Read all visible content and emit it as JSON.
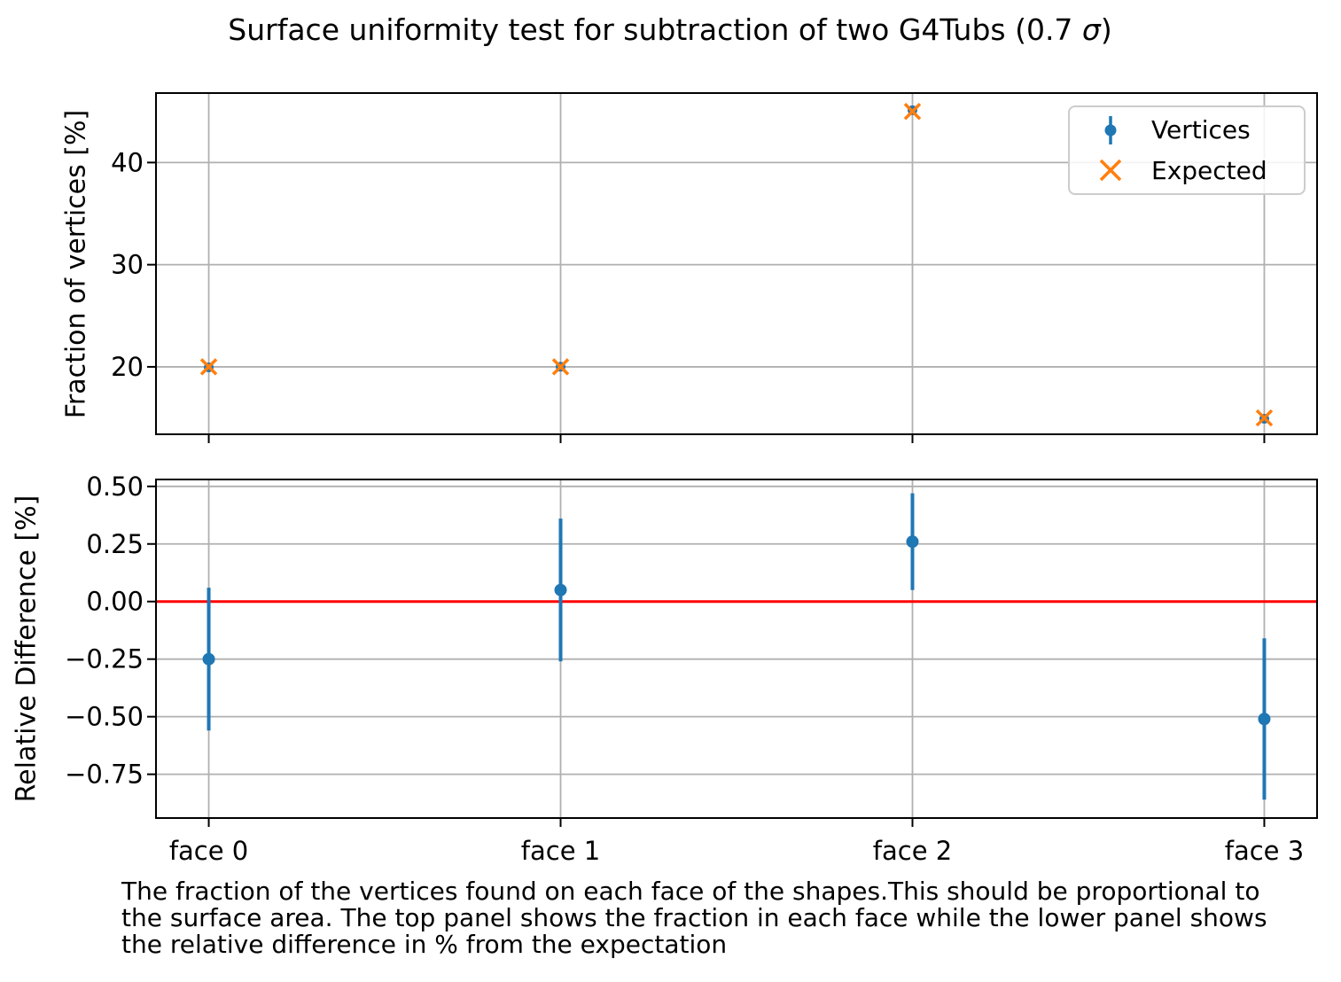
{
  "title": {
    "prefix": "Surface uniformity test for subtraction of two G4Tubs (0.7 ",
    "sigma": "σ",
    "suffix": ")"
  },
  "caption": "The fraction of the vertices found on each face of the shapes.This should be proportional to\nthe surface area. The top panel shows the fraction in each face while the lower panel shows\nthe relative difference in % from the expectation",
  "colors": {
    "vertices": "#1f77b4",
    "expected": "#ff7f0e",
    "zero_line": "#ff0000",
    "grid": "#b0b0b0",
    "axes": "#000000"
  },
  "legend": {
    "items": [
      {
        "label": "Vertices",
        "marker": "errorbar-dot",
        "color": "#1f77b4"
      },
      {
        "label": "Expected",
        "marker": "x",
        "color": "#ff7f0e"
      }
    ]
  },
  "chart_data": [
    {
      "type": "scatter",
      "panel": "top",
      "categories": [
        "face 0",
        "face 1",
        "face 2",
        "face 3"
      ],
      "ylabel": "Fraction of vertices [%]",
      "ylim": [
        13.4,
        46.8
      ],
      "yticks": [
        20,
        30,
        40
      ],
      "ytick_labels": [
        "20",
        "30",
        "40"
      ],
      "grid": true,
      "show_xticklabels": false,
      "legend_position": "upper right",
      "series": [
        {
          "name": "Vertices",
          "marker": "o-errorbar",
          "color": "#1f77b4",
          "values": [
            19.95,
            20.01,
            45.12,
            14.92
          ],
          "yerr": [
            0.06,
            0.06,
            0.09,
            0.05
          ]
        },
        {
          "name": "Expected",
          "marker": "x",
          "color": "#ff7f0e",
          "values": [
            20,
            20,
            45,
            15
          ]
        }
      ]
    },
    {
      "type": "scatter",
      "panel": "bottom",
      "categories": [
        "face 0",
        "face 1",
        "face 2",
        "face 3"
      ],
      "ylabel": "Relative Difference [%]",
      "ylim": [
        -0.94,
        0.53
      ],
      "yticks": [
        0.5,
        0.25,
        0.0,
        -0.25,
        -0.5,
        -0.75
      ],
      "ytick_labels": [
        "0.50",
        "0.25",
        "0.00",
        "−0.25",
        "−0.50",
        "−0.75"
      ],
      "grid": true,
      "show_xticklabels": true,
      "hline": {
        "y": 0,
        "color": "#ff0000"
      },
      "series": [
        {
          "name": "Vertices",
          "marker": "o-errorbar",
          "color": "#1f77b4",
          "values": [
            -0.25,
            0.05,
            0.26,
            -0.51
          ],
          "yerr": [
            0.31,
            0.31,
            0.21,
            0.35
          ]
        }
      ]
    }
  ]
}
